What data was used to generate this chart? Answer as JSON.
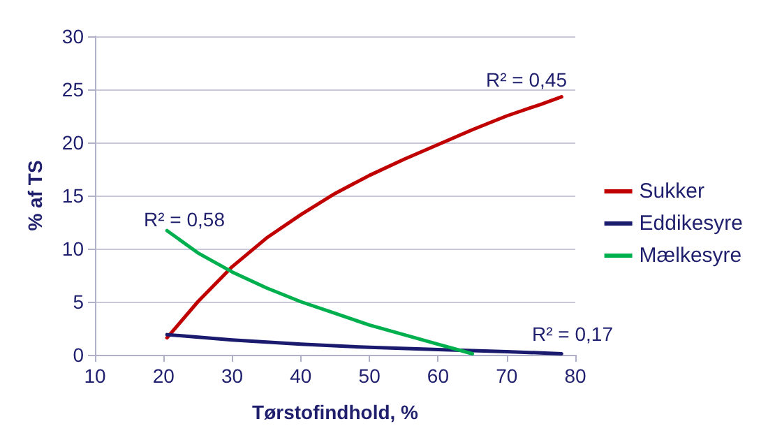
{
  "chart_data": {
    "type": "line",
    "xlabel": "Tørstofindhold, %",
    "ylabel": "% af TS",
    "xlim": [
      10,
      80
    ],
    "xticks": [
      10,
      20,
      30,
      40,
      50,
      60,
      70,
      80
    ],
    "ylim": [
      0,
      30
    ],
    "yticks": [
      0,
      5,
      10,
      15,
      20,
      25,
      30
    ],
    "grid": "y",
    "legend": "right",
    "marker": "none",
    "line_style": "solid",
    "series": [
      {
        "name": "Sukker",
        "color": "#c00000",
        "x": [
          20.5,
          25,
          30,
          35,
          40,
          45,
          50,
          55,
          60,
          65,
          70,
          75,
          78
        ],
        "values": [
          1.6,
          5,
          8.3,
          11,
          13.2,
          15.2,
          16.9,
          18.4,
          19.8,
          21.2,
          22.5,
          23.6,
          24.3
        ]
      },
      {
        "name": "Eddikesyre",
        "color": "#1a1a6e",
        "x": [
          20.5,
          30,
          40,
          50,
          60,
          70,
          78
        ],
        "values": [
          1.9,
          1.4,
          1.0,
          0.7,
          0.5,
          0.3,
          0.1
        ]
      },
      {
        "name": "Mælkesyre",
        "color": "#00b04f",
        "x": [
          20.5,
          25,
          30,
          35,
          40,
          45,
          50,
          55,
          60,
          65
        ],
        "values": [
          11.7,
          9.6,
          7.8,
          6.3,
          5.0,
          3.9,
          2.8,
          1.9,
          1.0,
          0.1
        ]
      }
    ],
    "annotations": [
      "R² = 0,45",
      "R² = 0,58",
      "R² = 0,17"
    ]
  }
}
